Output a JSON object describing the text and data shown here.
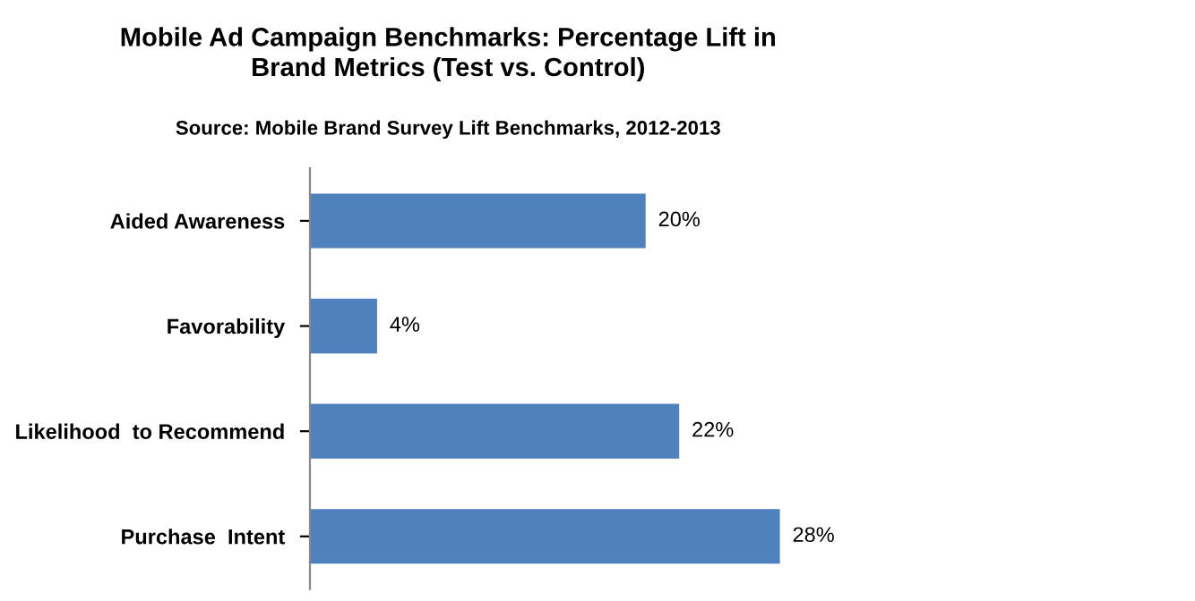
{
  "chart_data": {
    "type": "bar",
    "orientation": "horizontal",
    "title": "Mobile Ad Campaign Benchmarks: Percentage Lift in\nBrand Metrics (Test vs. Control)",
    "subtitle": "Source: Mobile Brand Survey Lift Benchmarks, 2012-2013",
    "categories": [
      "Aided Awareness",
      "Favorability",
      "Likelihood  to Recommend",
      "Purchase  Intent"
    ],
    "values": [
      20,
      4,
      22,
      28
    ],
    "value_labels": [
      "20%",
      "4%",
      "22%",
      "28%"
    ],
    "color": "#4f81bd",
    "grid": false,
    "legend": false
  }
}
